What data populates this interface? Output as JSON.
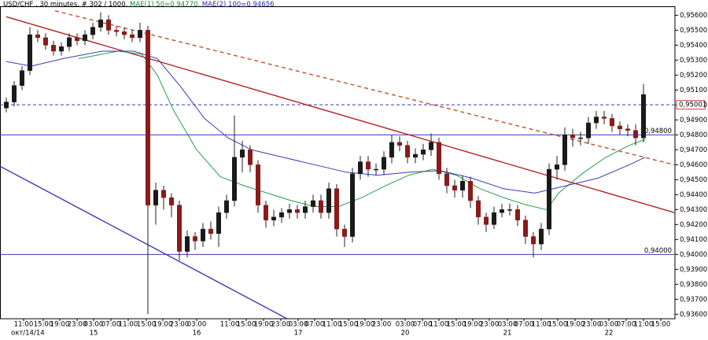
{
  "chart_data": {
    "type": "candlestick",
    "title_parts": [
      {
        "text": "USD/CHF , 30 minutes, # 302 / 1000,",
        "color": "#000000"
      },
      {
        "text": "MAE(1) 50=0,94770,",
        "color": "#1a8a3a"
      },
      {
        "text": "MAE(2) 100=0,94656",
        "color": "#2b2bb0"
      }
    ],
    "up_color": "#1a1a1a",
    "down_color": "#8b1a1a",
    "open": [
      0.9498,
      0.9502,
      0.9513,
      0.9523,
      0.9547,
      0.9545,
      0.954,
      0.9536,
      0.9539,
      0.9545,
      0.9543,
      0.9547,
      0.9552,
      0.9557,
      0.955,
      0.9549,
      0.9547,
      0.9545,
      0.955,
      0.9433,
      0.9443,
      0.9438,
      0.9433,
      0.9402,
      0.9412,
      0.9409,
      0.9417,
      0.9414,
      0.9428,
      0.9436,
      0.9465,
      0.947,
      0.946,
      0.9433,
      0.9423,
      0.9425,
      0.9428,
      0.943,
      0.9428,
      0.9432,
      0.9436,
      0.9428,
      0.9444,
      0.9417,
      0.9412,
      0.9454,
      0.9462,
      0.9457,
      0.9457,
      0.9465,
      0.9475,
      0.9473,
      0.9465,
      0.9467,
      0.947,
      0.9475,
      0.9454,
      0.9446,
      0.9443,
      0.9449,
      0.9436,
      0.9425,
      0.942,
      0.9428,
      0.943,
      0.943,
      0.9423,
      0.9412,
      0.9407,
      0.9417,
      0.9457,
      0.946,
      0.948,
      0.9478,
      0.9478,
      0.9488,
      0.9492,
      0.9491,
      0.9486,
      0.9484,
      0.9483,
      0.9478
    ],
    "high": [
      0.9505,
      0.9516,
      0.9526,
      0.9552,
      0.955,
      0.9548,
      0.9543,
      0.9542,
      0.9548,
      0.9548,
      0.955,
      0.9555,
      0.9562,
      0.956,
      0.9553,
      0.9552,
      0.955,
      0.9555,
      0.9553,
      0.9448,
      0.9446,
      0.9441,
      0.9436,
      0.9416,
      0.9415,
      0.9421,
      0.9422,
      0.9432,
      0.944,
      0.9493,
      0.9476,
      0.9473,
      0.9463,
      0.9436,
      0.943,
      0.9431,
      0.9434,
      0.9433,
      0.9436,
      0.944,
      0.944,
      0.9448,
      0.9447,
      0.942,
      0.9458,
      0.9466,
      0.9466,
      0.9461,
      0.9469,
      0.948,
      0.9479,
      0.9476,
      0.9471,
      0.9474,
      0.9481,
      0.9478,
      0.9458,
      0.945,
      0.9453,
      0.9452,
      0.9439,
      0.9428,
      0.9432,
      0.9434,
      0.9434,
      0.9433,
      0.9426,
      0.9415,
      0.9421,
      0.9461,
      0.9466,
      0.9485,
      0.9484,
      0.9482,
      0.9492,
      0.9496,
      0.9496,
      0.9494,
      0.9489,
      0.9487,
      0.9487,
      0.9514
    ],
    "low": [
      0.9495,
      0.9499,
      0.951,
      0.952,
      0.9542,
      0.9537,
      0.9533,
      0.9533,
      0.9536,
      0.954,
      0.954,
      0.9544,
      0.9549,
      0.9547,
      0.9546,
      0.9544,
      0.9542,
      0.9542,
      0.936,
      0.942,
      0.943,
      0.9425,
      0.9396,
      0.9398,
      0.9403,
      0.9405,
      0.941,
      0.9405,
      0.9424,
      0.9432,
      0.9455,
      0.9455,
      0.9428,
      0.9418,
      0.9419,
      0.9421,
      0.9424,
      0.9424,
      0.9424,
      0.9428,
      0.9424,
      0.9424,
      0.9412,
      0.9405,
      0.9408,
      0.945,
      0.9452,
      0.9453,
      0.9453,
      0.9461,
      0.9469,
      0.9461,
      0.9461,
      0.9463,
      0.9466,
      0.945,
      0.9441,
      0.9438,
      0.9438,
      0.9431,
      0.942,
      0.9415,
      0.9417,
      0.9425,
      0.9426,
      0.9419,
      0.9407,
      0.9398,
      0.9403,
      0.9413,
      0.945,
      0.9456,
      0.9472,
      0.9473,
      0.9474,
      0.9484,
      0.9487,
      0.9482,
      0.948,
      0.9479,
      0.9473,
      0.9475
    ],
    "close": [
      0.9502,
      0.9513,
      0.9523,
      0.9547,
      0.9545,
      0.954,
      0.9536,
      0.9539,
      0.9545,
      0.9543,
      0.9547,
      0.9552,
      0.9557,
      0.955,
      0.9549,
      0.9547,
      0.9545,
      0.955,
      0.9433,
      0.9443,
      0.9438,
      0.9433,
      0.9402,
      0.9412,
      0.9409,
      0.9417,
      0.9414,
      0.9428,
      0.9436,
      0.9465,
      0.947,
      0.946,
      0.9433,
      0.9423,
      0.9425,
      0.9428,
      0.943,
      0.9428,
      0.9432,
      0.9436,
      0.9428,
      0.9444,
      0.9417,
      0.9412,
      0.9454,
      0.9462,
      0.9457,
      0.9457,
      0.9465,
      0.9475,
      0.9473,
      0.9465,
      0.9467,
      0.947,
      0.9475,
      0.9454,
      0.9446,
      0.9443,
      0.9449,
      0.9436,
      0.9425,
      0.942,
      0.9428,
      0.943,
      0.943,
      0.9423,
      0.9412,
      0.9407,
      0.9417,
      0.9457,
      0.946,
      0.948,
      0.9478,
      0.9478,
      0.9488,
      0.9492,
      0.9491,
      0.9486,
      0.9484,
      0.9483,
      0.9478,
      0.9507
    ],
    "lines": [
      {
        "color": "#2aa04a",
        "x": [
          9.2,
          14.2,
          17.2,
          19.2,
          21.2,
          24.2,
          27.2,
          30.2,
          33.2,
          36.2,
          39.2,
          42.2,
          45.2,
          48.2,
          51.2,
          54.2,
          57.2,
          60.2,
          63.2,
          66.2,
          68.7,
          70.2,
          73.2,
          76.2,
          79.2,
          81.2
        ],
        "values": [
          0.9531,
          0.9536,
          0.9534,
          0.952,
          0.9497,
          0.947,
          0.9452,
          0.9446,
          0.9441,
          0.9436,
          0.9432,
          0.9432,
          0.9438,
          0.9446,
          0.9453,
          0.9457,
          0.9453,
          0.9444,
          0.9438,
          0.9433,
          0.943,
          0.9441,
          0.9454,
          0.9465,
          0.9473,
          0.9477
        ]
      },
      {
        "color": "#3a3ab8",
        "x": [
          0,
          3.2,
          7.2,
          12.2,
          16.2,
          19.2,
          22.2,
          25.2,
          28.2,
          31.2,
          35.2,
          39.2,
          43.2,
          47.2,
          51.2,
          55.2,
          59.2,
          63.2,
          67.2,
          71.2,
          75.2,
          79.2,
          81.2
        ],
        "values": [
          0.9529,
          0.9526,
          0.9531,
          0.9536,
          0.9536,
          0.9531,
          0.9512,
          0.9491,
          0.9478,
          0.947,
          0.9465,
          0.946,
          0.9455,
          0.9453,
          0.9455,
          0.9456,
          0.9451,
          0.9444,
          0.9441,
          0.9446,
          0.9451,
          0.946,
          0.9465
        ]
      }
    ],
    "trendlines": [
      {
        "color": "#b22222",
        "dash": false,
        "x": [
          0,
          84.9
        ],
        "values": [
          0.9559,
          0.9428
        ]
      },
      {
        "color": "#c0502a",
        "dash": true,
        "x": [
          6.2,
          84.9
        ],
        "values": [
          0.9563,
          0.946
        ]
      },
      {
        "color": "#3a3ab8",
        "dash": false,
        "x": [
          -0.8,
          35.7
        ],
        "values": [
          0.9459,
          0.9357
        ]
      }
    ],
    "levels": [
      {
        "value": 0.948,
        "label": "0,94800",
        "color": "#3a3ab8",
        "dash": false,
        "boxed": false
      },
      {
        "value": 0.94,
        "label": "0,94000",
        "color": "#3a3ab8",
        "dash": false,
        "boxed": false
      },
      {
        "value": 0.95001,
        "label": "0,95001",
        "color": "#3a3ab8",
        "dash": true,
        "boxed": true
      }
    ],
    "xlim": [
      -0.8,
      84.9
    ],
    "ylim": [
      0.9357,
      0.9566
    ],
    "yticks": [
      {
        "value": 0.936,
        "label": "0,93600"
      },
      {
        "value": 0.937,
        "label": "0,93700"
      },
      {
        "value": 0.938,
        "label": "0,93800"
      },
      {
        "value": 0.939,
        "label": "0,93900"
      },
      {
        "value": 0.94,
        "label": "0,94000"
      },
      {
        "value": 0.941,
        "label": "0,94100"
      },
      {
        "value": 0.942,
        "label": "0,94200"
      },
      {
        "value": 0.943,
        "label": "0,94300"
      },
      {
        "value": 0.944,
        "label": "0,94400"
      },
      {
        "value": 0.945,
        "label": "0,94500"
      },
      {
        "value": 0.946,
        "label": "0,94600"
      },
      {
        "value": 0.947,
        "label": "0,94700"
      },
      {
        "value": 0.948,
        "label": "0,94800"
      },
      {
        "value": 0.949,
        "label": "0,94900"
      },
      {
        "value": 0.95,
        "label": "0,95000"
      },
      {
        "value": 0.951,
        "label": "0,95100"
      },
      {
        "value": 0.952,
        "label": "0,95200"
      },
      {
        "value": 0.953,
        "label": "0,95300"
      },
      {
        "value": 0.954,
        "label": "0,95400"
      },
      {
        "value": 0.955,
        "label": "0,95500"
      },
      {
        "value": 0.956,
        "label": "0,95600"
      }
    ],
    "xticks": [
      {
        "value": 2.2,
        "label": "11:00"
      },
      {
        "value": 4.7,
        "label": "15:00"
      },
      {
        "value": 6.8,
        "label": "19:00"
      },
      {
        "value": 9,
        "label": "23:00"
      },
      {
        "value": 11.1,
        "label": "03:00"
      },
      {
        "value": 13.3,
        "label": "07:00"
      },
      {
        "value": 15.5,
        "label": "11:00"
      },
      {
        "value": 17.8,
        "label": "15:00"
      },
      {
        "value": 19.9,
        "label": "19:00"
      },
      {
        "value": 22,
        "label": "23:00"
      },
      {
        "value": 24.2,
        "label": "03:00"
      },
      {
        "value": 28.4,
        "label": "11:00"
      },
      {
        "value": 30.5,
        "label": "15:00"
      },
      {
        "value": 32.7,
        "label": "19:00"
      },
      {
        "value": 34.9,
        "label": "23:00"
      },
      {
        "value": 37.1,
        "label": "03:00"
      },
      {
        "value": 39.2,
        "label": "07:00"
      },
      {
        "value": 41.4,
        "label": "11:00"
      },
      {
        "value": 43.5,
        "label": "15:00"
      },
      {
        "value": 45.6,
        "label": "19:00"
      },
      {
        "value": 47.7,
        "label": "23:00"
      },
      {
        "value": 50.7,
        "label": "03:00"
      },
      {
        "value": 52.9,
        "label": "07:00"
      },
      {
        "value": 55,
        "label": "11:00"
      },
      {
        "value": 57.2,
        "label": "15:00"
      },
      {
        "value": 59.3,
        "label": "19:00"
      },
      {
        "value": 61.4,
        "label": "23:00"
      },
      {
        "value": 63.7,
        "label": "03:00"
      },
      {
        "value": 65.8,
        "label": "07:00"
      },
      {
        "value": 68,
        "label": "11:00"
      },
      {
        "value": 70.1,
        "label": "15:00"
      },
      {
        "value": 72.3,
        "label": "19:00"
      },
      {
        "value": 74.4,
        "label": "23:00"
      },
      {
        "value": 76.6,
        "label": "03:00"
      },
      {
        "value": 78.8,
        "label": "07:00"
      },
      {
        "value": 81,
        "label": "11:00"
      },
      {
        "value": 83.2,
        "label": "15:00"
      }
    ],
    "date_ticks": [
      {
        "value": 0.6,
        "label": "окт/14/14"
      },
      {
        "value": 11.1,
        "label": "15"
      },
      {
        "value": 24.2,
        "label": "16"
      },
      {
        "value": 37.1,
        "label": "17"
      },
      {
        "value": 50.7,
        "label": "20"
      },
      {
        "value": 63.7,
        "label": "21"
      },
      {
        "value": 76.6,
        "label": "22"
      }
    ]
  }
}
